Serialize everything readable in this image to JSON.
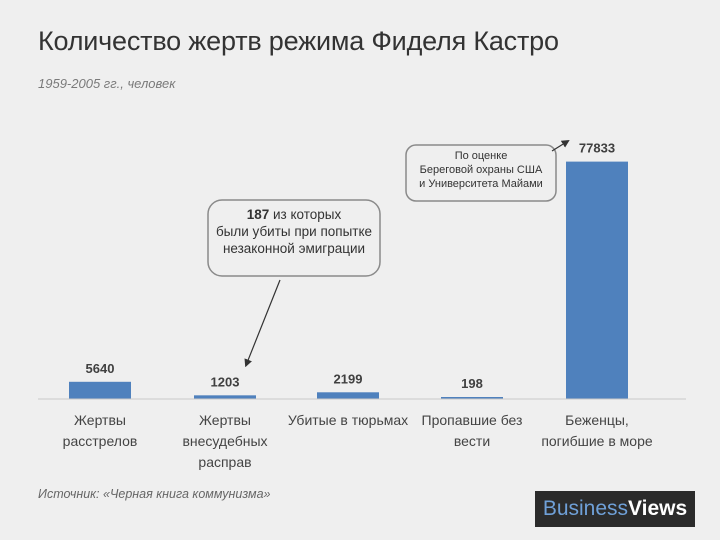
{
  "title": "Количество жертв режима Фиделя Кастро",
  "subtitle": "1959-2005 гг., человек",
  "source": "Источник: «Черная книга коммунизма»",
  "logo": {
    "part1": "Business",
    "part2": "Views"
  },
  "colors": {
    "bar": "#4f81bd",
    "background": "#efefef",
    "axis": "#c8c8c8"
  },
  "chart_data": {
    "type": "bar",
    "categories": [
      [
        "Жертвы",
        "расстрелов"
      ],
      [
        "Жертвы",
        "внесудебных",
        "расправ"
      ],
      [
        "Убитые в тюрьмах"
      ],
      [
        "Пропавшие без",
        "вести"
      ],
      [
        "Беженцы,",
        "погибшие в море"
      ]
    ],
    "values": [
      5640,
      1203,
      2199,
      198,
      77833
    ],
    "ylim": [
      0,
      80000
    ],
    "grid": false,
    "annotations": [
      {
        "target_index": 1,
        "bold": "187",
        "lines": [
          " из которых",
          "были убиты при попытке",
          "незаконной эмиграции"
        ]
      },
      {
        "target_index": 4,
        "lines": [
          "По оценке",
          "Береговой охраны США",
          "и Университета Майами"
        ]
      }
    ]
  }
}
